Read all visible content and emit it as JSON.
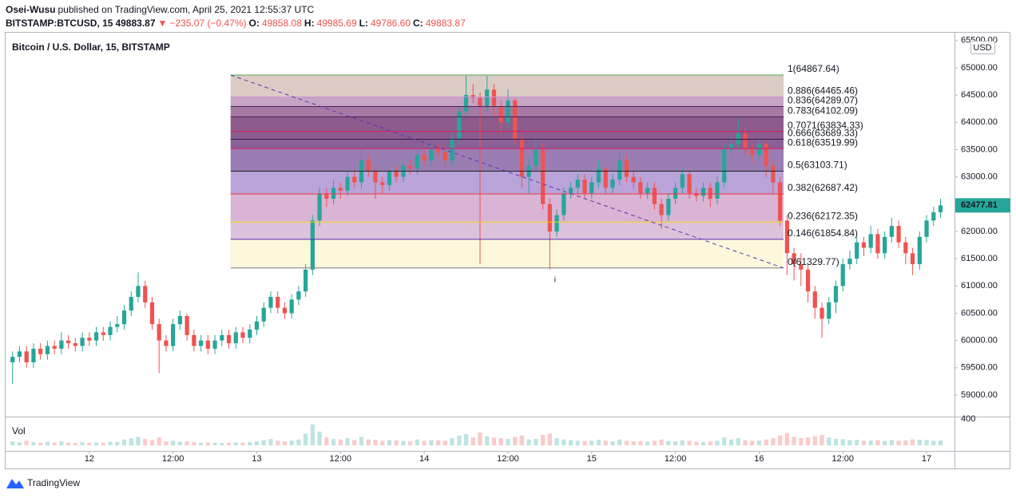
{
  "header": {
    "author": "Osei-Wusu",
    "published": "published on TradingView.com, April 25, 2021 12:55:37 UTC",
    "symbol": "BITSTAMP:BTCUSD, 15",
    "last": "49883.87",
    "arrow": "▼",
    "change": "−235.07 (−0.47%)",
    "open_label": "O:",
    "open": "49858.08",
    "high_label": "H:",
    "high": "49985.69",
    "low_label": "L:",
    "low": "49786.60",
    "close_label": "C:",
    "close": "49883.87"
  },
  "footer": {
    "brand": "TradingView"
  },
  "chart_data": {
    "type": "candlestick",
    "title": "Bitcoin / U.S. Dollar, 15, BITSTAMP",
    "currency": "USD",
    "volume_label": "Vol",
    "up_color": "#26a69a",
    "down_color": "#ef5350",
    "grid": false,
    "xlim": [
      -12,
      124
    ],
    "xticks": [
      {
        "value": 0,
        "label": "12"
      },
      {
        "value": 12,
        "label": "12:00"
      },
      {
        "value": 24,
        "label": "13"
      },
      {
        "value": 36,
        "label": "12:00"
      },
      {
        "value": 48,
        "label": "14"
      },
      {
        "value": 60,
        "label": "12:00"
      },
      {
        "value": 72,
        "label": "15"
      },
      {
        "value": 84,
        "label": "12:00"
      },
      {
        "value": 96,
        "label": "16"
      },
      {
        "value": 108,
        "label": "12:00"
      },
      {
        "value": 120,
        "label": "17"
      }
    ],
    "ylim": [
      58605,
      65658
    ],
    "yticks": [
      {
        "value": 59000,
        "label": "59000.00"
      },
      {
        "value": 59500,
        "label": "59500.00"
      },
      {
        "value": 60000,
        "label": "60000.00"
      },
      {
        "value": 60500,
        "label": "60500.00"
      },
      {
        "value": 61000,
        "label": "61000.00"
      },
      {
        "value": 61500,
        "label": "61500.00"
      },
      {
        "value": 62000,
        "label": "62000.00"
      },
      {
        "value": 62500,
        "label": "62500.00"
      },
      {
        "value": 63000,
        "label": "63000.00"
      },
      {
        "value": 63500,
        "label": "63500.00"
      },
      {
        "value": 64000,
        "label": "64000.00"
      },
      {
        "value": 64500,
        "label": "64500.00"
      },
      {
        "value": 65000,
        "label": "65000.00"
      },
      {
        "value": 65500,
        "label": "65500.00"
      }
    ],
    "volume_ylim": [
      0,
      440
    ],
    "volume_yticks": [
      400
    ],
    "x": [
      -11,
      -10,
      -9,
      -8,
      -7,
      -6,
      -5,
      -4,
      -3,
      -2,
      -1,
      0,
      1,
      2,
      3,
      4,
      5,
      6,
      7,
      8,
      9,
      10,
      11,
      12,
      13,
      14,
      15,
      16,
      17,
      18,
      19,
      20,
      21,
      22,
      23,
      24,
      25,
      26,
      27,
      28,
      29,
      30,
      31,
      32,
      33,
      34,
      35,
      36,
      37,
      38,
      39,
      40,
      41,
      42,
      43,
      44,
      45,
      46,
      47,
      48,
      49,
      50,
      51,
      52,
      53,
      54,
      55,
      56,
      57,
      58,
      59,
      60,
      61,
      62,
      63,
      64,
      65,
      66,
      67,
      68,
      69,
      70,
      71,
      72,
      73,
      74,
      75,
      76,
      77,
      78,
      79,
      80,
      81,
      82,
      83,
      84,
      85,
      86,
      87,
      88,
      89,
      90,
      91,
      92,
      93,
      94,
      95,
      96,
      97,
      98,
      99,
      100,
      101,
      102,
      103,
      104,
      105,
      106,
      107,
      108,
      109,
      110,
      111,
      112,
      113,
      114,
      115,
      116,
      117,
      118,
      119,
      120,
      121,
      122
    ],
    "open": [
      59600,
      59700,
      59800,
      59600,
      59850,
      59750,
      59900,
      59850,
      60000,
      59950,
      59900,
      60050,
      60000,
      60150,
      60100,
      60250,
      60300,
      60550,
      60800,
      61000,
      60700,
      60300,
      60000,
      59900,
      60300,
      60450,
      60100,
      59900,
      60000,
      59850,
      60000,
      60100,
      59950,
      60150,
      60050,
      60200,
      60350,
      60600,
      60800,
      60600,
      60500,
      60750,
      60900,
      61300,
      62200,
      62700,
      62600,
      62800,
      62750,
      63000,
      62900,
      63300,
      63100,
      62900,
      62850,
      63100,
      63000,
      63200,
      63150,
      63400,
      63300,
      63500,
      63450,
      63300,
      63700,
      64200,
      64500,
      64450,
      64300,
      64600,
      64300,
      64000,
      64400,
      63700,
      63000,
      63200,
      63500,
      62500,
      62000,
      62300,
      62700,
      62800,
      62950,
      62700,
      62900,
      63150,
      62800,
      62950,
      63300,
      63000,
      62900,
      62700,
      62800,
      62500,
      62300,
      62600,
      62800,
      63050,
      62700,
      62650,
      62800,
      62600,
      62900,
      63500,
      63600,
      63800,
      63500,
      63400,
      63600,
      63200,
      62900,
      62200,
      61600,
      61400,
      61300,
      60900,
      60600,
      60400,
      60700,
      61000,
      61400,
      61500,
      61800,
      61700,
      61950,
      61600,
      61900,
      62100,
      61800,
      61600,
      61400,
      61900,
      62200,
      62350
    ],
    "high": [
      59800,
      59900,
      59900,
      59950,
      59950,
      60000,
      60000,
      60150,
      60100,
      60050,
      60150,
      60150,
      60250,
      60250,
      60350,
      60450,
      60650,
      60900,
      61250,
      61100,
      60800,
      60400,
      60100,
      60400,
      60550,
      60500,
      60200,
      60100,
      60100,
      60100,
      60200,
      60200,
      60250,
      60250,
      60300,
      60450,
      60700,
      60900,
      60900,
      60700,
      60850,
      61000,
      61400,
      62300,
      62800,
      62800,
      62950,
      62900,
      63100,
      63100,
      63500,
      63400,
      63200,
      63000,
      63200,
      63200,
      63300,
      63300,
      63550,
      63500,
      63600,
      63600,
      63550,
      63800,
      64300,
      64850,
      64700,
      64550,
      64850,
      64700,
      64400,
      64600,
      64450,
      63800,
      63350,
      63700,
      63600,
      62600,
      62400,
      62800,
      62900,
      63050,
      63050,
      63000,
      63300,
      63200,
      63050,
      63450,
      63400,
      63100,
      63000,
      62900,
      62900,
      62600,
      62700,
      62900,
      63150,
      63100,
      62800,
      62900,
      62900,
      63000,
      63600,
      63750,
      64100,
      63900,
      63600,
      63700,
      63650,
      63300,
      63000,
      62300,
      61700,
      61600,
      61400,
      61000,
      60700,
      60800,
      61100,
      61500,
      61650,
      61900,
      61900,
      62100,
      62050,
      62000,
      62250,
      62200,
      61900,
      61700,
      62000,
      62300,
      62450,
      62600
    ],
    "low": [
      59200,
      59600,
      59500,
      59500,
      59650,
      59650,
      59750,
      59750,
      59850,
      59800,
      59800,
      59900,
      59900,
      60000,
      60000,
      60150,
      60200,
      60450,
      60700,
      60600,
      60200,
      59400,
      59800,
      59800,
      60200,
      60000,
      59800,
      59800,
      59750,
      59750,
      59900,
      59850,
      59850,
      59950,
      59950,
      60100,
      60250,
      60500,
      60500,
      60400,
      60400,
      60650,
      60800,
      61200,
      62100,
      62450,
      62500,
      62600,
      62650,
      62800,
      62800,
      63000,
      62600,
      62700,
      62750,
      62900,
      62900,
      63050,
      63050,
      63200,
      63200,
      63350,
      63100,
      63200,
      63600,
      64100,
      64350,
      61400,
      64200,
      64100,
      63800,
      63900,
      63600,
      62800,
      62700,
      63100,
      62400,
      61300,
      61900,
      62200,
      62600,
      62700,
      62600,
      62600,
      62800,
      62700,
      62700,
      62850,
      62900,
      62800,
      62600,
      62600,
      62400,
      62050,
      62200,
      62500,
      62700,
      62600,
      62550,
      62550,
      62450,
      62500,
      62800,
      63400,
      63500,
      63400,
      63250,
      63300,
      63000,
      62700,
      62100,
      61200,
      61100,
      61000,
      60700,
      60400,
      60050,
      60300,
      60500,
      60900,
      61300,
      61400,
      61550,
      61600,
      61500,
      61500,
      61800,
      61700,
      61400,
      61200,
      61300,
      61800,
      62100,
      62250
    ],
    "close": [
      59700,
      59800,
      59600,
      59850,
      59750,
      59900,
      59850,
      60000,
      59950,
      59900,
      60050,
      60000,
      60150,
      60100,
      60250,
      60300,
      60550,
      60800,
      61000,
      60700,
      60300,
      60000,
      59900,
      60300,
      60450,
      60100,
      59900,
      60000,
      59850,
      60000,
      60100,
      59950,
      60150,
      60050,
      60200,
      60350,
      60600,
      60800,
      60600,
      60500,
      60750,
      60900,
      61300,
      62200,
      62700,
      62600,
      62800,
      62750,
      63000,
      62900,
      63300,
      63100,
      62900,
      62850,
      63100,
      63000,
      63200,
      63150,
      63400,
      63300,
      63500,
      63450,
      63300,
      63700,
      64200,
      64500,
      64450,
      64300,
      64600,
      64300,
      64000,
      64400,
      63700,
      63000,
      63200,
      63500,
      62500,
      62000,
      62300,
      62700,
      62800,
      62950,
      62700,
      62900,
      63150,
      62800,
      62950,
      63300,
      63000,
      62900,
      62700,
      62800,
      62500,
      62300,
      62600,
      62800,
      63050,
      62700,
      62650,
      62800,
      62600,
      62900,
      63500,
      63600,
      63800,
      63500,
      63400,
      63600,
      63200,
      62900,
      62200,
      61600,
      61400,
      61300,
      60900,
      60600,
      60400,
      60700,
      61000,
      61400,
      61500,
      61800,
      61700,
      61950,
      61600,
      61900,
      62100,
      61800,
      61600,
      61400,
      61900,
      62200,
      62350,
      62477.81
    ],
    "volume": [
      60,
      45,
      70,
      50,
      40,
      55,
      45,
      60,
      40,
      35,
      50,
      40,
      45,
      40,
      55,
      50,
      90,
      110,
      130,
      100,
      80,
      120,
      60,
      70,
      55,
      60,
      50,
      40,
      45,
      40,
      35,
      40,
      45,
      40,
      50,
      60,
      80,
      95,
      70,
      60,
      75,
      90,
      180,
      320,
      210,
      120,
      100,
      90,
      110,
      80,
      130,
      90,
      85,
      70,
      80,
      75,
      70,
      60,
      90,
      70,
      80,
      75,
      70,
      110,
      150,
      170,
      120,
      200,
      140,
      120,
      110,
      100,
      130,
      150,
      90,
      100,
      160,
      180,
      110,
      90,
      80,
      70,
      65,
      70,
      85,
      70,
      60,
      90,
      70,
      60,
      65,
      55,
      70,
      90,
      70,
      60,
      75,
      70,
      55,
      50,
      60,
      70,
      120,
      90,
      110,
      80,
      70,
      75,
      90,
      110,
      150,
      190,
      130,
      110,
      120,
      140,
      160,
      120,
      100,
      95,
      80,
      85,
      70,
      75,
      80,
      70,
      80,
      70,
      75,
      90,
      85,
      80,
      70,
      75
    ],
    "fib": {
      "x": [
        20.25,
        99.5
      ],
      "trend_color": "#5e35b1",
      "levels": [
        {
          "label": "1(64867.64)",
          "value": 64867.64,
          "color": "#4caf50",
          "fill": "#dccbc5"
        },
        {
          "label": "0.886(64465.46)",
          "value": 64465.46,
          "color": "#ce93d8",
          "fill": "#c6a4c4"
        },
        {
          "label": "0.836(64289.07)",
          "value": 64289.07,
          "color": "#4a235a",
          "fill": "#a67aa4"
        },
        {
          "label": "0.783(64102.09)",
          "value": 64102.09,
          "color": "#4a235a",
          "fill": "#8d5b8c"
        },
        {
          "label": "0.7071(63834.33)",
          "value": 63834.33,
          "color": "#d81b60",
          "fill": "#8c5b8f"
        },
        {
          "label": "0.666(63689.33)",
          "value": 63689.33,
          "color": "#311b42",
          "fill": "#8b6096"
        },
        {
          "label": "0.618(63519.99)",
          "value": 63519.99,
          "color": "#d81b60",
          "fill": "#9a7db3"
        },
        {
          "label": "0.5(63103.71)",
          "value": 63103.71,
          "color": "#212121",
          "fill": "#b9a3d9"
        },
        {
          "label": "0.382(62687.42)",
          "value": 62687.42,
          "color": "#f23645",
          "fill": "#d9b4d4"
        },
        {
          "label": "0.236(62172.35)",
          "value": 62172.35,
          "color": "#f5d90a",
          "fill": "#dcc2da"
        },
        {
          "label": "0.146(61854.84)",
          "value": 61854.84,
          "color": "#512da8",
          "fill": "#fdf8db"
        },
        {
          "label": "0(61329.77)",
          "value": 61329.77,
          "color": "#787b86"
        }
      ]
    },
    "annotations": [
      {
        "text": "i",
        "x": 66.75
      }
    ]
  }
}
